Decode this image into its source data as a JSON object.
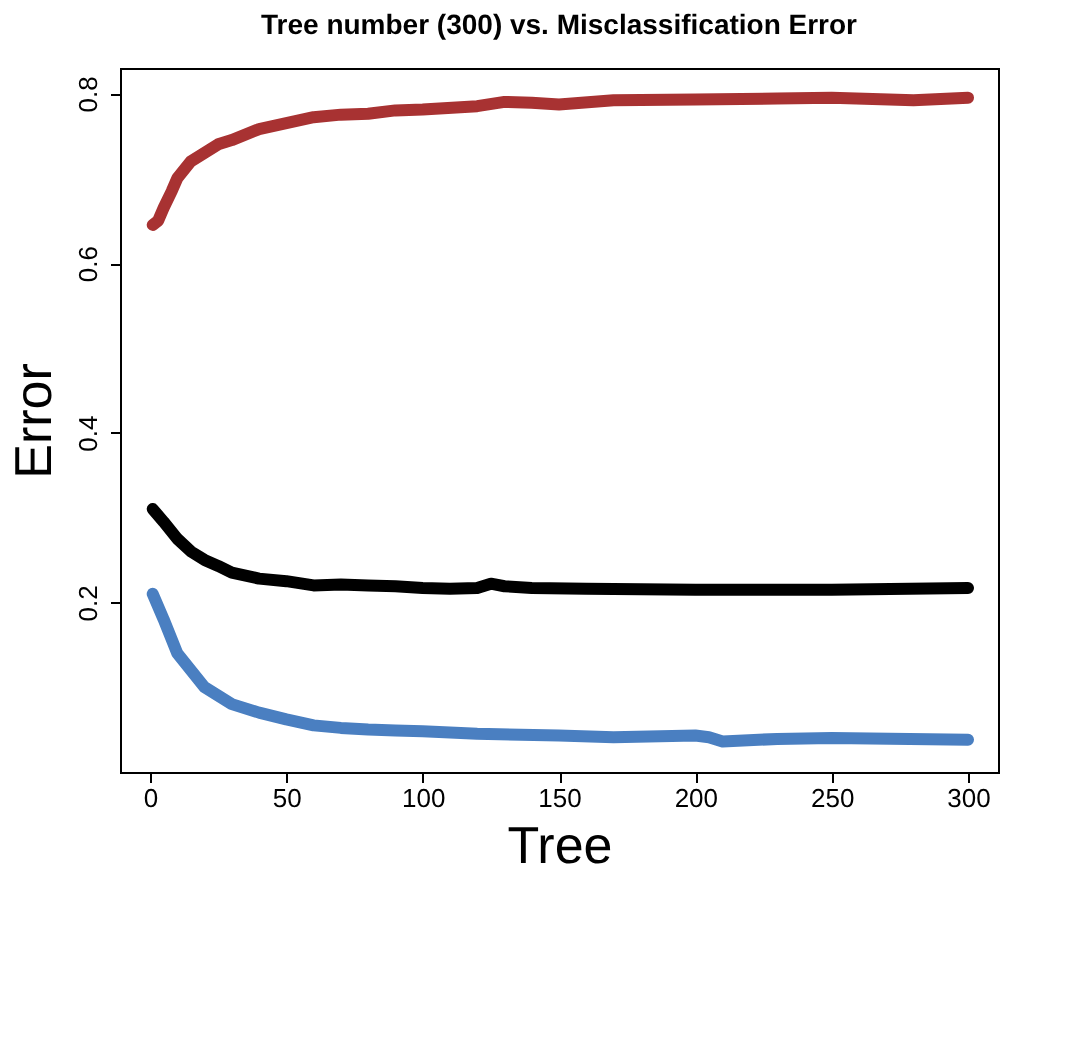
{
  "chart_data": {
    "type": "line",
    "title": "Tree number (300) vs. Misclassification Error",
    "xlabel": "Tree",
    "ylabel": "Error",
    "xlim": [
      -11,
      311
    ],
    "ylim": [
      0,
      0.83
    ],
    "xticks": [
      0,
      50,
      100,
      150,
      200,
      250,
      300
    ],
    "yticks": [
      0.2,
      0.4,
      0.6,
      0.8
    ],
    "grid": false,
    "series": [
      {
        "color": "#a83232",
        "x": [
          1,
          3,
          5,
          8,
          10,
          15,
          20,
          25,
          30,
          40,
          50,
          60,
          70,
          80,
          90,
          100,
          120,
          130,
          140,
          150,
          170,
          200,
          230,
          250,
          280,
          300
        ],
        "values": [
          0.645,
          0.65,
          0.665,
          0.685,
          0.7,
          0.72,
          0.73,
          0.74,
          0.745,
          0.758,
          0.765,
          0.772,
          0.775,
          0.776,
          0.78,
          0.781,
          0.785,
          0.79,
          0.789,
          0.787,
          0.792,
          0.793,
          0.794,
          0.795,
          0.792,
          0.795
        ]
      },
      {
        "color": "#000000",
        "x": [
          1,
          5,
          10,
          15,
          20,
          25,
          30,
          40,
          50,
          60,
          70,
          80,
          90,
          100,
          110,
          120,
          125,
          130,
          140,
          160,
          200,
          250,
          300
        ],
        "values": [
          0.31,
          0.295,
          0.275,
          0.26,
          0.25,
          0.243,
          0.235,
          0.228,
          0.225,
          0.22,
          0.221,
          0.22,
          0.219,
          0.217,
          0.216,
          0.217,
          0.222,
          0.219,
          0.217,
          0.216,
          0.215,
          0.215,
          0.217
        ]
      },
      {
        "color": "#4a7fc1",
        "x": [
          1,
          5,
          10,
          15,
          20,
          25,
          30,
          40,
          50,
          60,
          70,
          80,
          90,
          100,
          120,
          150,
          170,
          200,
          205,
          210,
          230,
          250,
          300
        ],
        "values": [
          0.21,
          0.18,
          0.14,
          0.12,
          0.1,
          0.09,
          0.08,
          0.07,
          0.062,
          0.055,
          0.052,
          0.05,
          0.049,
          0.048,
          0.045,
          0.043,
          0.041,
          0.043,
          0.041,
          0.036,
          0.039,
          0.04,
          0.038
        ]
      }
    ]
  }
}
